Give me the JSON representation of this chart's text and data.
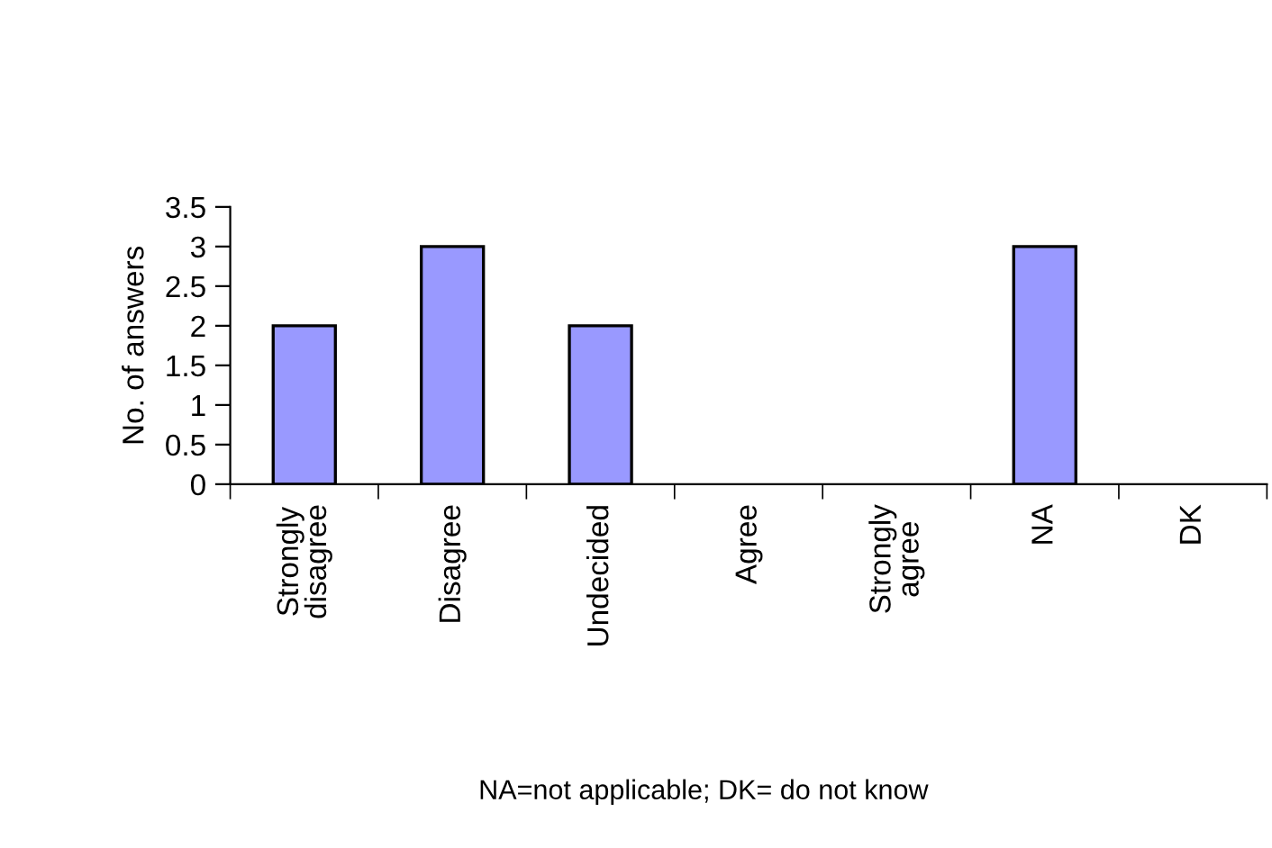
{
  "chart_data": {
    "type": "bar",
    "ylabel": "No. of answers",
    "categories": [
      "Strongly\ndisagree",
      "Disagree",
      "Undecided",
      "Agree",
      "Strongly\nagree",
      "NA",
      "DK"
    ],
    "values": [
      2,
      3,
      2,
      0,
      0,
      3,
      0
    ],
    "color": "#9999ff",
    "ylim": [
      0,
      3.5
    ],
    "yticks": [
      0,
      0.5,
      1,
      1.5,
      2,
      2.5,
      3,
      3.5
    ],
    "grid": false,
    "legend": false,
    "annotations": [
      "NA=not applicable; DK= do not know"
    ]
  }
}
